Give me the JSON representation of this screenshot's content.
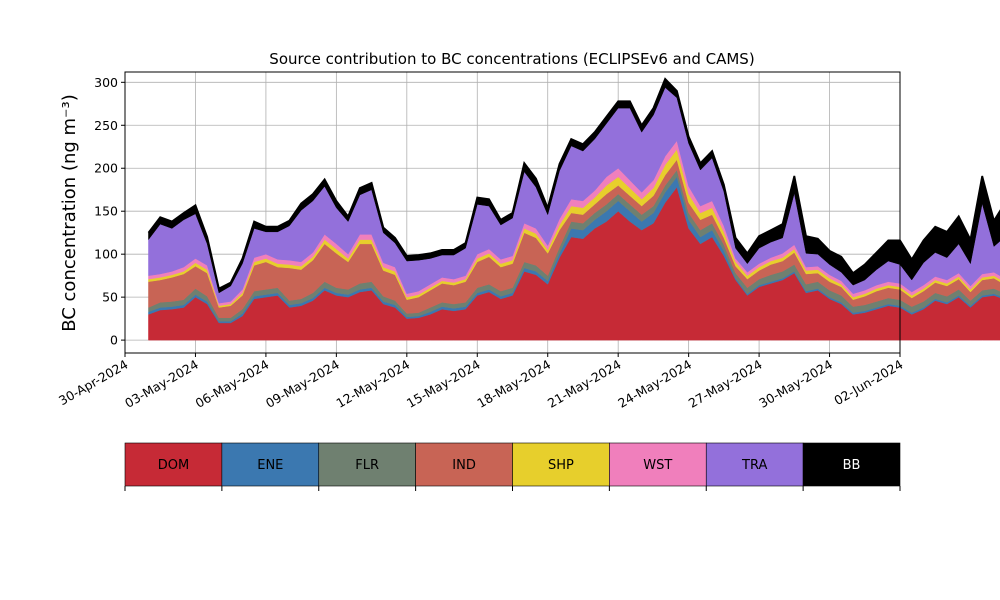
{
  "chart_data": {
    "type": "area",
    "stacked": true,
    "title": "Source contribution to BC concentrations (ECLIPSEv6 and CAMS)",
    "xlabel": "",
    "ylabel": "BC concentration (ng m⁻³)",
    "ylim": [
      -15,
      312
    ],
    "xlim": [
      "2024-04-30",
      "2024-06-02"
    ],
    "xticks": [
      "30-Apr-2024",
      "03-May-2024",
      "06-May-2024",
      "09-May-2024",
      "12-May-2024",
      "15-May-2024",
      "18-May-2024",
      "21-May-2024",
      "24-May-2024",
      "27-May-2024",
      "30-May-2024",
      "02-Jun-2024"
    ],
    "yticks": [
      0,
      50,
      100,
      150,
      200,
      250,
      300
    ],
    "grid": true,
    "legend_position": "below plot, horizontal color bar",
    "x_start": "2024-05-01",
    "x_step_days": 0.5,
    "series": [
      {
        "name": "DOM",
        "color": "#c62a36",
        "values": [
          30,
          35,
          36,
          38,
          50,
          42,
          20,
          20,
          28,
          48,
          50,
          52,
          38,
          40,
          46,
          58,
          52,
          50,
          56,
          58,
          42,
          38,
          25,
          26,
          30,
          36,
          34,
          36,
          52,
          56,
          48,
          52,
          80,
          76,
          65,
          96,
          120,
          118,
          130,
          138,
          150,
          138,
          128,
          136,
          160,
          178,
          130,
          112,
          120,
          98,
          70,
          52,
          62,
          66,
          70,
          78,
          55,
          58,
          48,
          42,
          30,
          32,
          36,
          40,
          38,
          30,
          36,
          46,
          42,
          50,
          38,
          50,
          52,
          47
        ]
      },
      {
        "name": "ENE",
        "color": "#3b78b0",
        "values": [
          3,
          3,
          3,
          3,
          3,
          3,
          2,
          2,
          3,
          3,
          3,
          3,
          3,
          3,
          3,
          3,
          3,
          3,
          3,
          3,
          3,
          3,
          2,
          2,
          3,
          3,
          3,
          3,
          3,
          3,
          3,
          3,
          4,
          4,
          4,
          5,
          10,
          10,
          10,
          12,
          12,
          12,
          10,
          12,
          12,
          12,
          10,
          8,
          8,
          6,
          2,
          2,
          2,
          2,
          2,
          2,
          2,
          2,
          2,
          2,
          2,
          2,
          2,
          2,
          2,
          2,
          2,
          2,
          2,
          2,
          2,
          2,
          2,
          2
        ]
      },
      {
        "name": "FLR",
        "color": "#6f8070",
        "values": [
          5,
          6,
          6,
          6,
          7,
          6,
          4,
          4,
          5,
          6,
          6,
          6,
          5,
          5,
          6,
          7,
          6,
          6,
          7,
          7,
          6,
          5,
          4,
          4,
          5,
          5,
          5,
          5,
          6,
          6,
          6,
          6,
          7,
          7,
          6,
          7,
          8,
          8,
          8,
          8,
          8,
          8,
          8,
          8,
          8,
          8,
          8,
          8,
          8,
          7,
          6,
          7,
          7,
          8,
          8,
          8,
          8,
          8,
          8,
          8,
          7,
          7,
          7,
          7,
          7,
          7,
          7,
          7,
          7,
          7,
          6,
          6,
          6,
          5
        ]
      },
      {
        "name": "IND",
        "color": "#c86455",
        "values": [
          30,
          26,
          28,
          30,
          26,
          27,
          12,
          14,
          16,
          30,
          32,
          24,
          38,
          34,
          38,
          44,
          40,
          32,
          46,
          44,
          30,
          30,
          16,
          18,
          20,
          22,
          22,
          24,
          30,
          32,
          28,
          28,
          34,
          32,
          26,
          20,
          10,
          10,
          10,
          12,
          10,
          10,
          10,
          12,
          12,
          12,
          12,
          12,
          10,
          8,
          8,
          10,
          10,
          12,
          12,
          14,
          12,
          10,
          10,
          10,
          8,
          10,
          12,
          12,
          12,
          10,
          12,
          12,
          12,
          12,
          10,
          12,
          12,
          10
        ]
      },
      {
        "name": "SHP",
        "color": "#e7cf2c",
        "values": [
          3,
          3,
          3,
          3,
          4,
          4,
          2,
          2,
          3,
          4,
          4,
          4,
          4,
          4,
          4,
          5,
          5,
          4,
          5,
          5,
          4,
          4,
          3,
          3,
          3,
          3,
          3,
          3,
          4,
          4,
          4,
          4,
          5,
          5,
          4,
          6,
          8,
          8,
          8,
          10,
          10,
          9,
          8,
          9,
          12,
          12,
          10,
          8,
          8,
          7,
          5,
          4,
          4,
          4,
          4,
          4,
          4,
          4,
          4,
          3,
          3,
          3,
          3,
          3,
          3,
          3,
          3,
          3,
          3,
          3,
          3,
          3,
          3,
          3
        ]
      },
      {
        "name": "WST",
        "color": "#f07fbc",
        "values": [
          4,
          4,
          4,
          5,
          5,
          5,
          3,
          3,
          4,
          5,
          5,
          5,
          5,
          5,
          5,
          6,
          6,
          5,
          6,
          6,
          5,
          5,
          4,
          4,
          4,
          4,
          4,
          4,
          5,
          5,
          5,
          5,
          6,
          6,
          5,
          7,
          8,
          8,
          8,
          10,
          10,
          9,
          8,
          9,
          10,
          10,
          9,
          8,
          8,
          7,
          4,
          4,
          4,
          4,
          5,
          5,
          4,
          4,
          4,
          4,
          4,
          4,
          4,
          4,
          4,
          4,
          4,
          4,
          4,
          4,
          4,
          4,
          4,
          4
        ]
      },
      {
        "name": "TRA",
        "color": "#9370db",
        "values": [
          42,
          58,
          50,
          55,
          52,
          25,
          12,
          18,
          30,
          34,
          26,
          32,
          40,
          60,
          60,
          56,
          42,
          38,
          46,
          52,
          35,
          28,
          38,
          36,
          30,
          26,
          28,
          32,
          58,
          50,
          40,
          44,
          60,
          48,
          36,
          56,
          62,
          58,
          60,
          62,
          70,
          84,
          70,
          76,
          80,
          50,
          50,
          42,
          50,
          40,
          12,
          10,
          18,
          18,
          18,
          60,
          16,
          14,
          12,
          10,
          10,
          12,
          18,
          24,
          22,
          14,
          26,
          28,
          26,
          34,
          26,
          82,
          30,
          50
        ]
      },
      {
        "name": "BB",
        "color": "#000000",
        "values": [
          8,
          8,
          8,
          8,
          10,
          8,
          5,
          4,
          6,
          8,
          6,
          6,
          6,
          8,
          8,
          8,
          8,
          6,
          8,
          8,
          6,
          6,
          6,
          6,
          6,
          6,
          6,
          6,
          8,
          8,
          6,
          6,
          10,
          10,
          8,
          8,
          8,
          8,
          8,
          8,
          8,
          8,
          8,
          8,
          10,
          8,
          8,
          8,
          8,
          8,
          12,
          12,
          14,
          14,
          16,
          20,
          20,
          18,
          16,
          18,
          14,
          18,
          20,
          24,
          28,
          24,
          26,
          30,
          30,
          32,
          28,
          32,
          30,
          40
        ]
      }
    ]
  }
}
